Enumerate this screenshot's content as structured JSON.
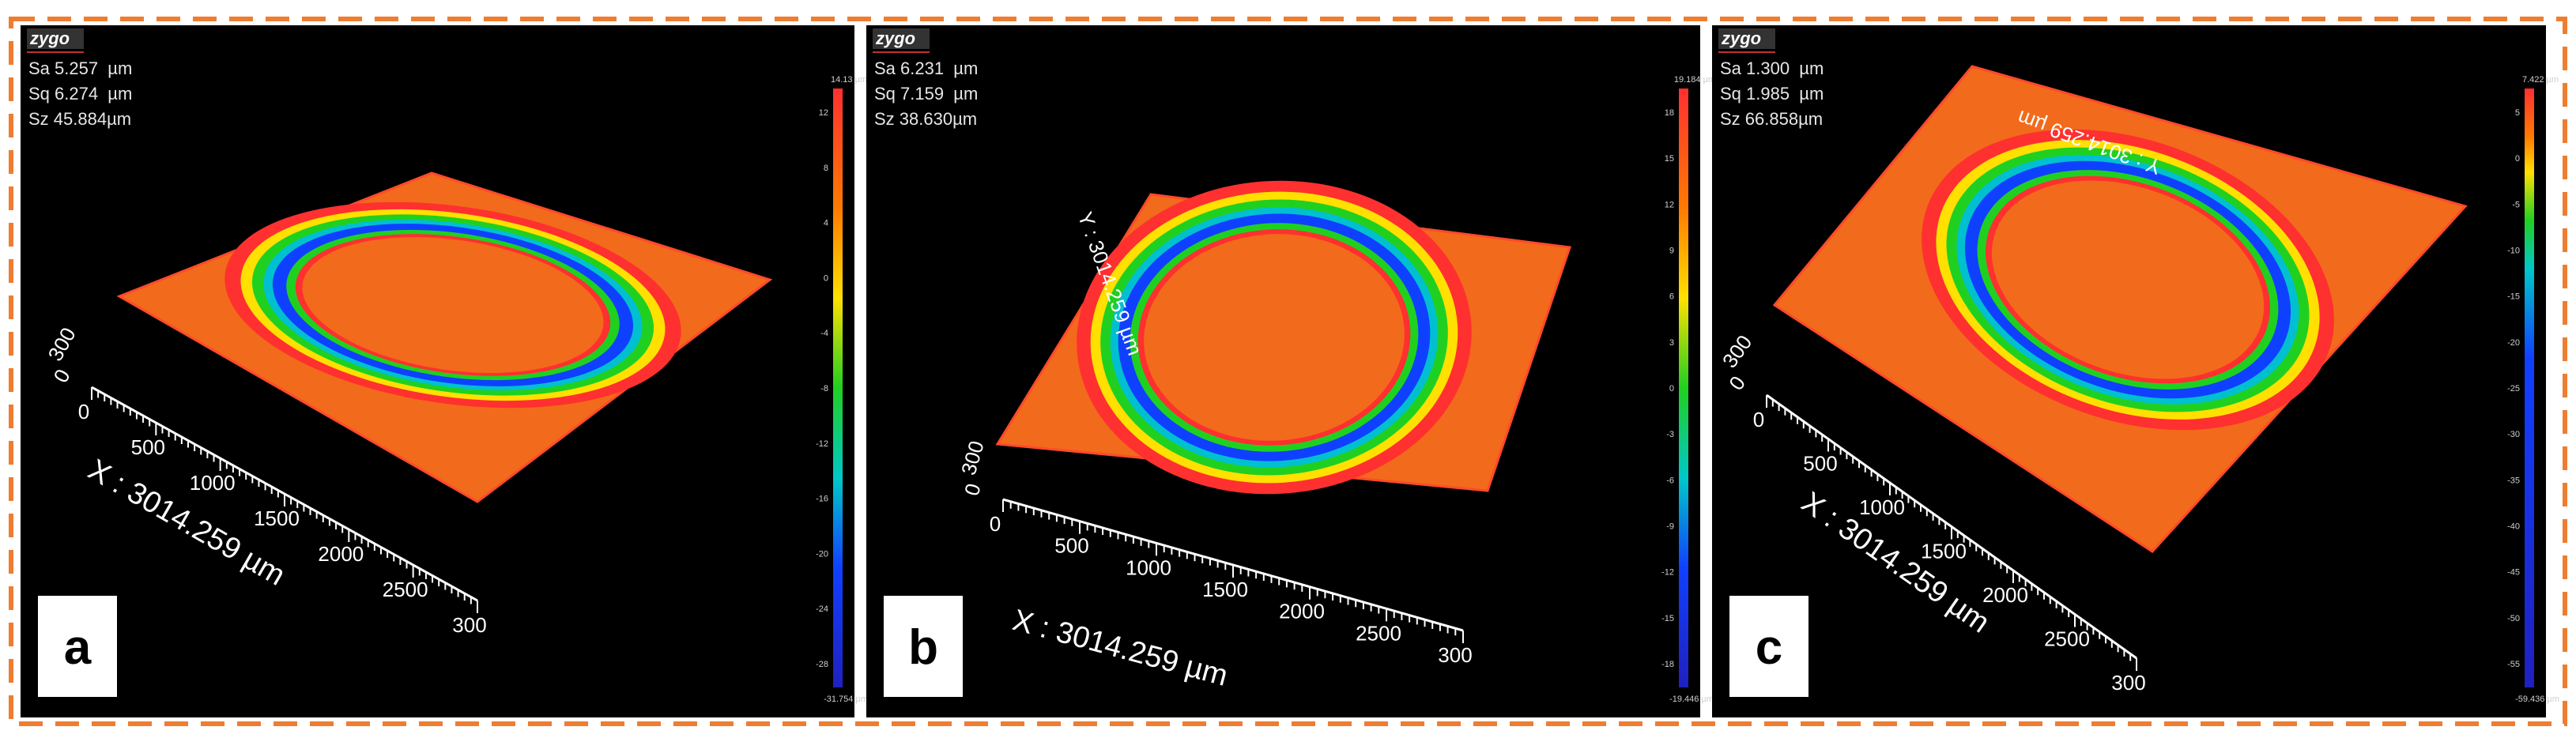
{
  "panels": [
    {
      "letter": "a",
      "logo": "zygo",
      "stats": [
        "Sa 5.257  µm",
        "Sq 6.274  µm",
        "Sz 45.884µm"
      ],
      "colorbar": {
        "max": "14.13 µm",
        "min": "-31.754 µm",
        "ticks": [
          "12",
          "8",
          "4",
          "0",
          "-4",
          "-8",
          "-12",
          "-16",
          "-20",
          "-24",
          "-28"
        ]
      },
      "x_axis": {
        "label": "X : 3014.259 µm",
        "ticks": [
          "0",
          "500",
          "1000",
          "1500",
          "2000",
          "2500",
          "300"
        ]
      },
      "y_axis": {
        "ticks": [
          "300",
          "0"
        ]
      }
    },
    {
      "letter": "b",
      "logo": "zygo",
      "stats": [
        "Sa 6.231  µm",
        "Sq 7.159  µm",
        "Sz 38.630µm"
      ],
      "colorbar": {
        "max": "19.184 µm",
        "min": "-19.446 µm",
        "ticks": [
          "18",
          "15",
          "12",
          "9",
          "6",
          "3",
          "0",
          "-3",
          "-6",
          "-9",
          "-12",
          "-15",
          "-18"
        ]
      },
      "x_axis": {
        "label": "X : 3014.259 µm",
        "ticks": [
          "0",
          "500",
          "1000",
          "1500",
          "2000",
          "2500",
          "300"
        ]
      },
      "y_axis": {
        "label": "Y : 3014.259 µm",
        "ticks": [
          "300",
          "0"
        ]
      }
    },
    {
      "letter": "c",
      "logo": "zygo",
      "stats": [
        "Sa 1.300  µm",
        "Sq 1.985  µm",
        "Sz 66.858µm"
      ],
      "colorbar": {
        "max": "7.422 µm",
        "min": "-59.436 µm",
        "ticks": [
          "5",
          "0",
          "-5",
          "-10",
          "-15",
          "-20",
          "-25",
          "-30",
          "-35",
          "-40",
          "-45",
          "-50",
          "-55"
        ]
      },
      "x_axis": {
        "label": "X : 3014.259 µm",
        "ticks": [
          "0",
          "500",
          "1000",
          "1500",
          "2000",
          "2500",
          "300"
        ]
      },
      "y_axis": {
        "label": "Y : 3014.259 µm",
        "ticks": [
          "300",
          "0"
        ]
      }
    }
  ]
}
